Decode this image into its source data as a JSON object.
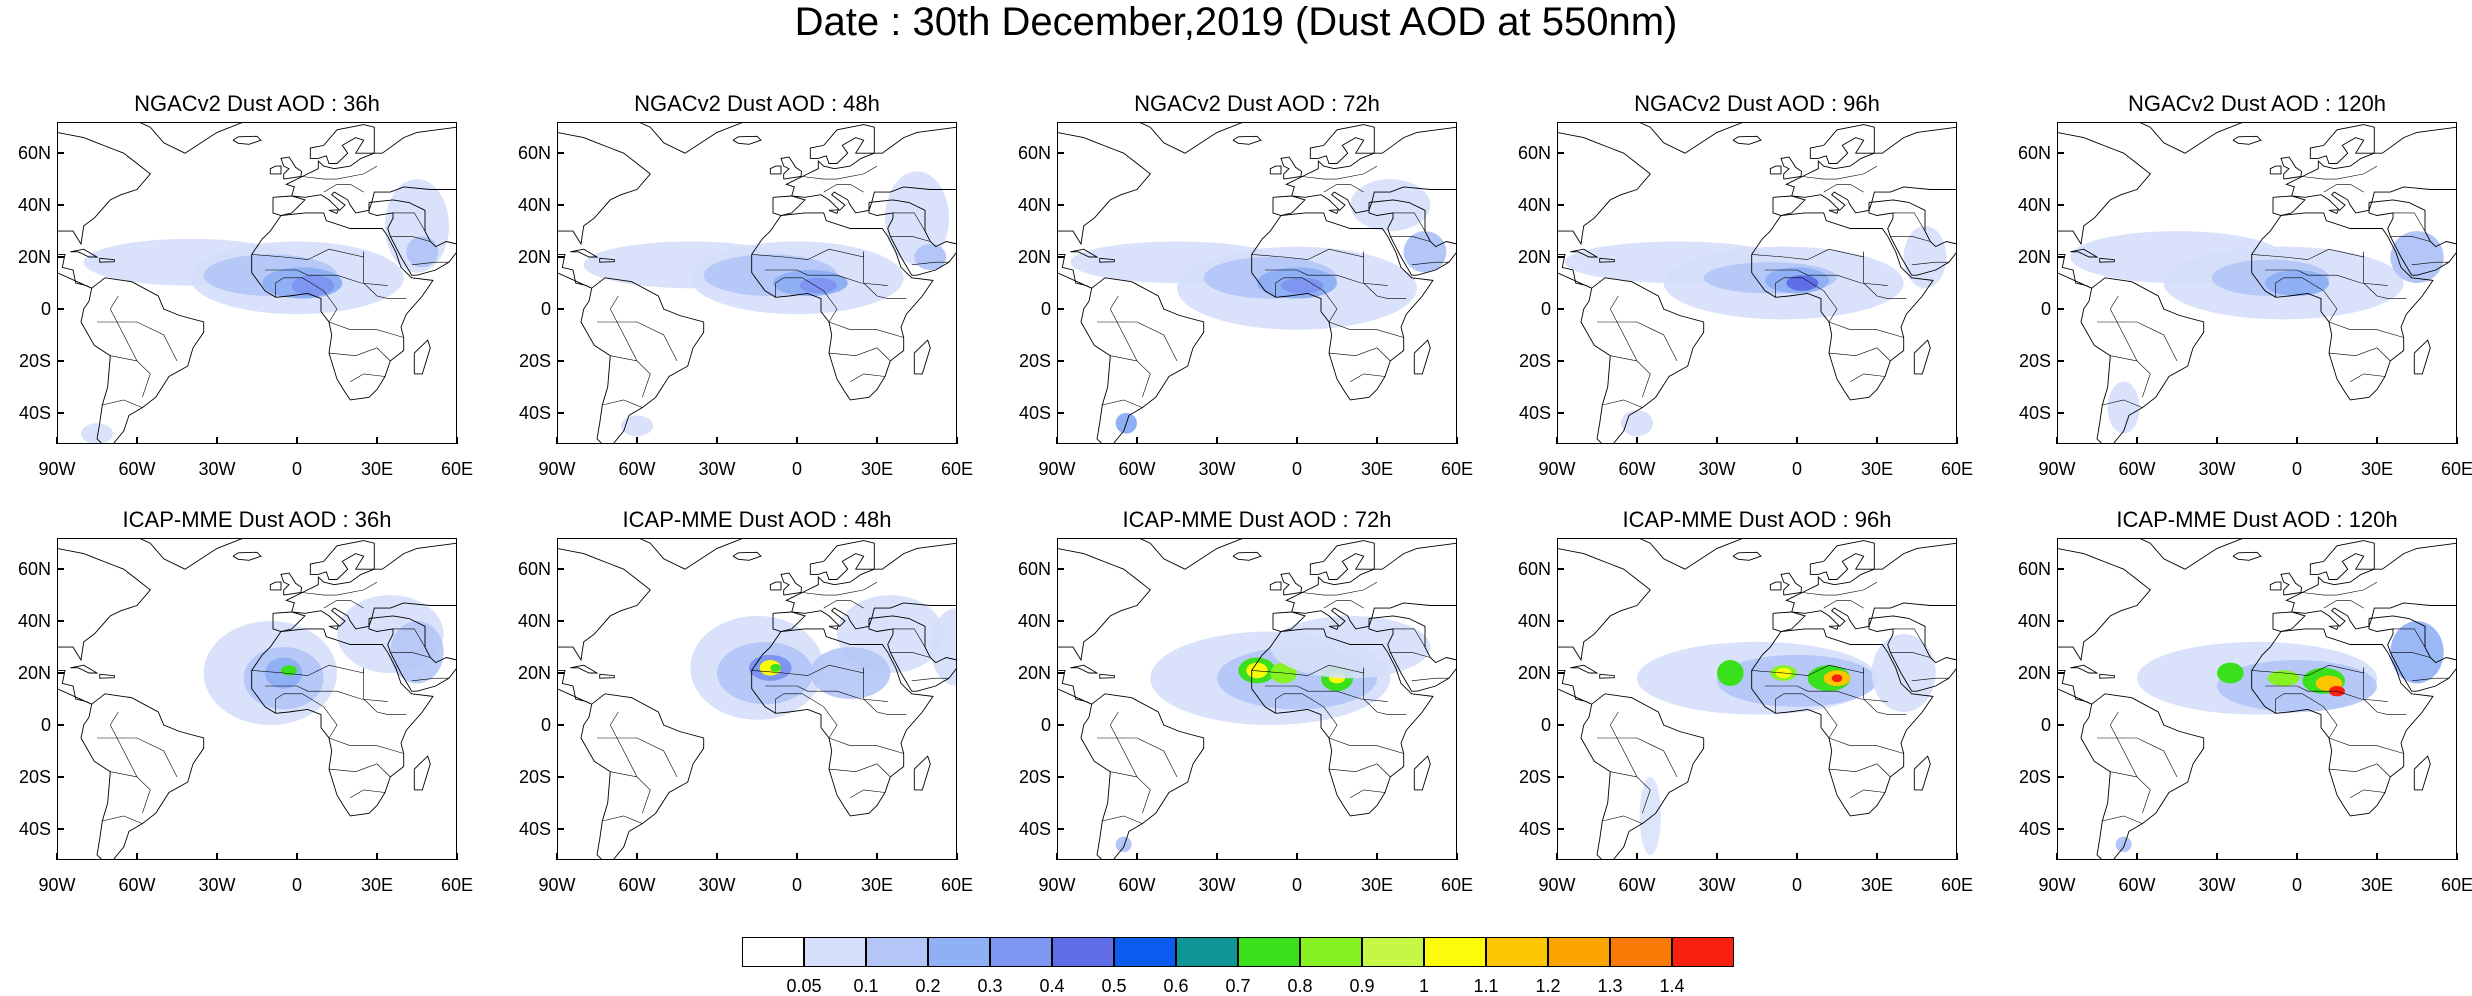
{
  "title": "Date : 30th December,2019 (Dust AOD at 550nm)",
  "lat_labels": [
    "60N",
    "40N",
    "20N",
    "0",
    "20S",
    "40S"
  ],
  "lon_labels": [
    "90W",
    "60W",
    "30W",
    "0",
    "30E",
    "60E"
  ],
  "panels": [
    {
      "title": "NGACv2 Dust AOD : 36h",
      "model": "NGACv2",
      "lead": "36h"
    },
    {
      "title": "NGACv2 Dust AOD : 48h",
      "model": "NGACv2",
      "lead": "48h"
    },
    {
      "title": "NGACv2 Dust AOD : 72h",
      "model": "NGACv2",
      "lead": "72h"
    },
    {
      "title": "NGACv2 Dust AOD : 96h",
      "model": "NGACv2",
      "lead": "96h"
    },
    {
      "title": "NGACv2 Dust AOD : 120h",
      "model": "NGACv2",
      "lead": "120h"
    },
    {
      "title": "ICAP-MME Dust AOD : 36h",
      "model": "ICAP-MME",
      "lead": "36h"
    },
    {
      "title": "ICAP-MME Dust AOD : 48h",
      "model": "ICAP-MME",
      "lead": "48h"
    },
    {
      "title": "ICAP-MME Dust AOD : 72h",
      "model": "ICAP-MME",
      "lead": "72h"
    },
    {
      "title": "ICAP-MME Dust AOD : 96h",
      "model": "ICAP-MME",
      "lead": "96h"
    },
    {
      "title": "ICAP-MME Dust AOD : 120h",
      "model": "ICAP-MME",
      "lead": "120h"
    }
  ],
  "colorbar": {
    "labels": [
      "0.05",
      "0.1",
      "0.2",
      "0.3",
      "0.4",
      "0.5",
      "0.6",
      "0.7",
      "0.8",
      "0.9",
      "1",
      "1.1",
      "1.2",
      "1.3",
      "1.4"
    ],
    "colors": [
      "#ffffff",
      "#d5dffa",
      "#b4c6f7",
      "#8fb0f5",
      "#7f95f2",
      "#5f6ee6",
      "#0d5cf2",
      "#0f9595",
      "#39e01b",
      "#86f224",
      "#c6f646",
      "#fbfb0a",
      "#fbc500",
      "#fba400",
      "#f87a06",
      "#fb1f10"
    ]
  }
}
